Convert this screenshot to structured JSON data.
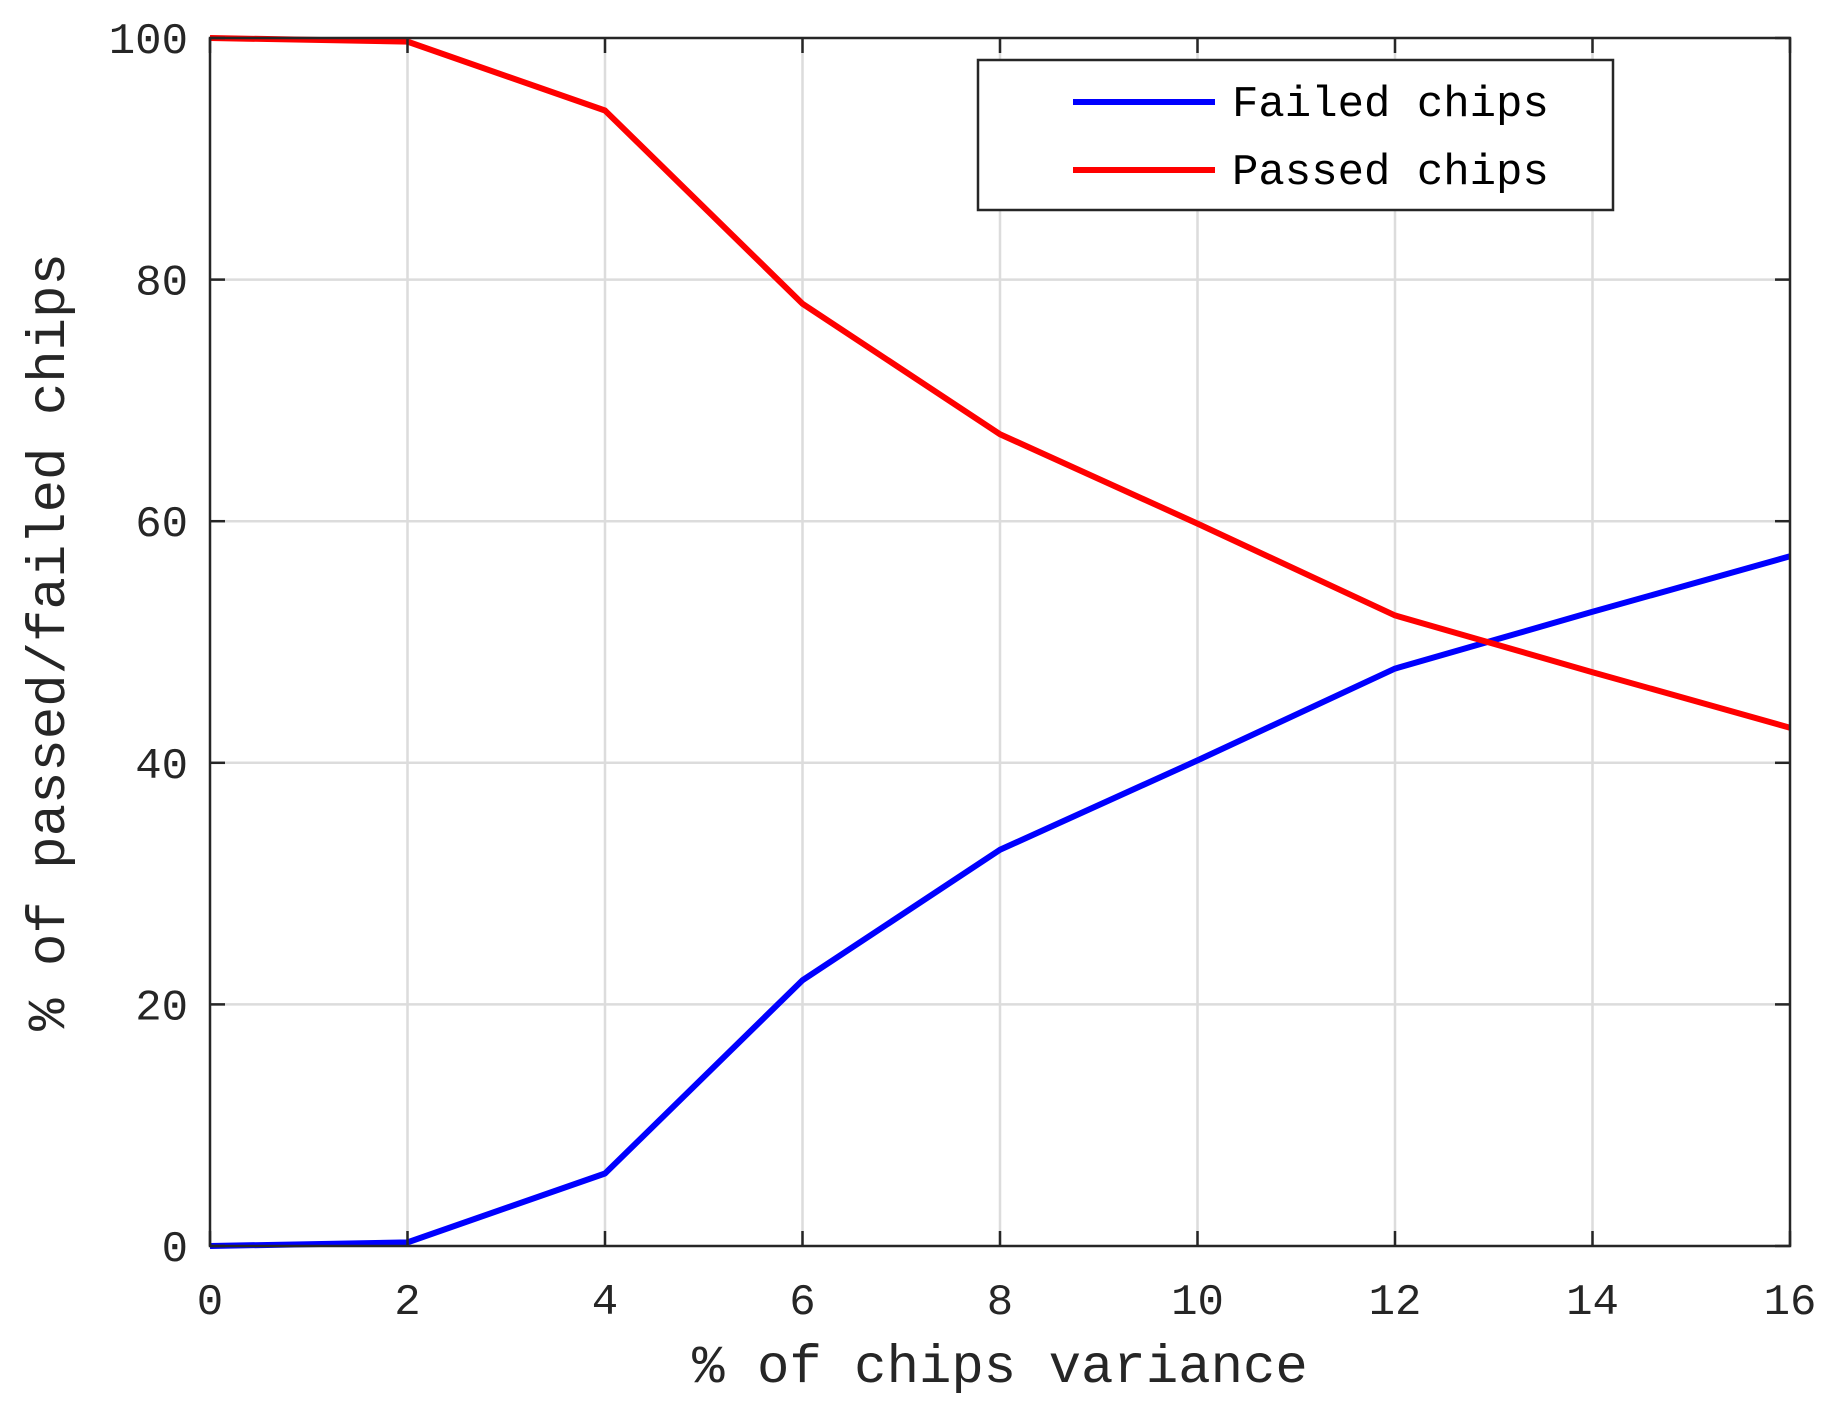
{
  "chart_data": {
    "type": "line",
    "xlabel": "% of chips variance",
    "ylabel": "% of passed/failed chips",
    "xlim": [
      0,
      16
    ],
    "ylim": [
      0,
      100
    ],
    "xticks": [
      0,
      2,
      4,
      6,
      8,
      10,
      12,
      14,
      16
    ],
    "yticks": [
      0,
      20,
      40,
      60,
      80,
      100
    ],
    "xtick_labels": [
      "0",
      "2",
      "4",
      "6",
      "8",
      "10",
      "12",
      "14",
      "16"
    ],
    "ytick_labels": [
      "0",
      "20",
      "40",
      "60",
      "80",
      "100"
    ],
    "grid": true,
    "legend_position": "top-right",
    "x": [
      0,
      2,
      4,
      6,
      8,
      10,
      12,
      14,
      16
    ],
    "series": [
      {
        "name": "Failed chips",
        "color": "#0000ff",
        "values": [
          0,
          0.3,
          6,
          22,
          32.8,
          40.2,
          47.8,
          52.5,
          57.1
        ]
      },
      {
        "name": "Passed chips",
        "color": "#ff0000",
        "values": [
          100,
          99.7,
          94,
          78,
          67.2,
          59.8,
          52.2,
          47.5,
          42.9
        ]
      }
    ]
  }
}
